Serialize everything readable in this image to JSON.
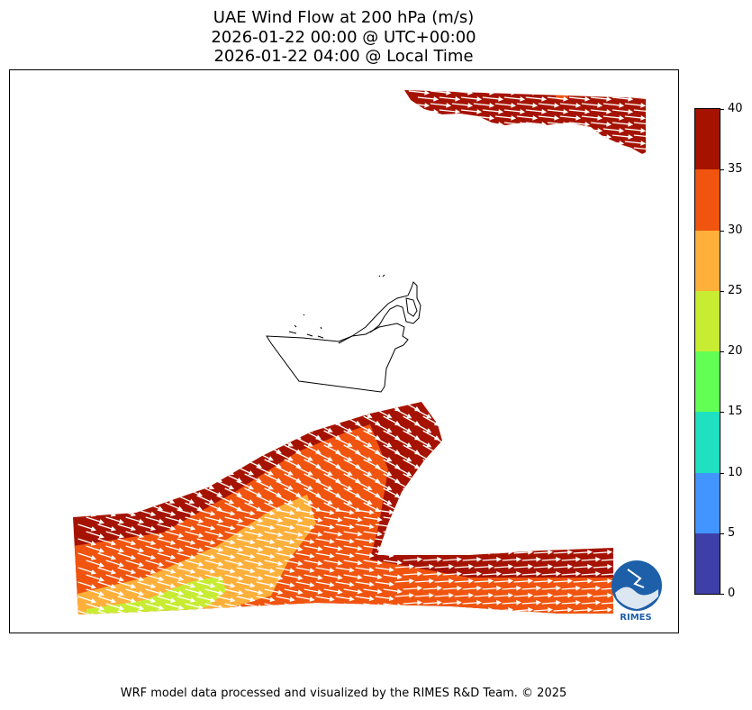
{
  "title": {
    "line1": "UAE Wind Flow at 200 hPa (m/s)",
    "line2": "2026-01-22 00:00 @ UTC+00:00",
    "line3": "2026-01-22 04:00 @ Local Time"
  },
  "colorbar": {
    "levels": [
      "0",
      "5",
      "10",
      "15",
      "20",
      "25",
      "30",
      "35",
      "40"
    ],
    "colors": [
      "#3f3fa8",
      "#4295ff",
      "#1fe0c1",
      "#62ff55",
      "#c7ec32",
      "#ffb03a",
      "#f0540e",
      "#a51300"
    ]
  },
  "logo": {
    "text": "RIMES"
  },
  "footer": {
    "credit": "WRF model data processed and visualized by the RIMES R&D Team. © 2025"
  },
  "colors": {
    "wind_35_40": "#a51300",
    "wind_30_35": "#f0540e",
    "wind_25_30": "#ffb03a",
    "wind_20_25": "#c7ec32"
  }
}
